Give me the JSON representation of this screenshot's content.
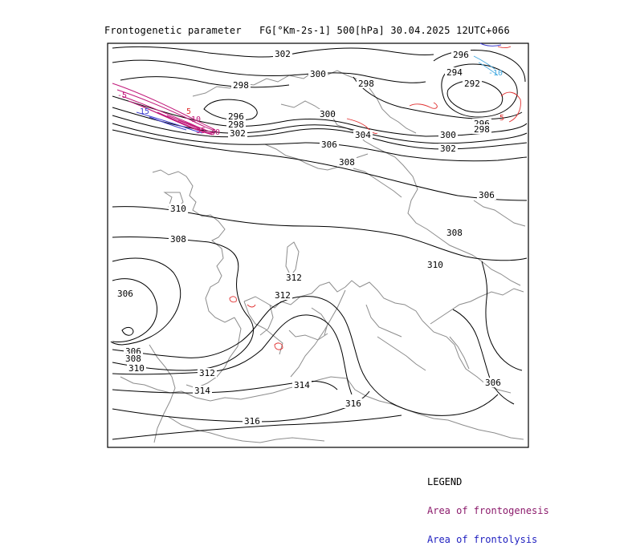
{
  "title": "Frontogenetic parameter   FG[°Km-2s-1] 500[hPa] 30.04.2025 12UTC+066",
  "legend": {
    "header": "LEGEND",
    "genesis": "Area of frontogenesis",
    "lysis": "Area of frontolysis"
  },
  "colors": {
    "contour": "#000000",
    "coastline": "#8c8c8c",
    "frontogenesis": "#c0187a",
    "frontolysis": "#4040d0",
    "red_contour": "#e03030",
    "cyan_contour": "#40a8e0"
  },
  "contour_labels": [
    "302",
    "300",
    "298",
    "296",
    "298",
    "302",
    "296",
    "294",
    "292",
    "300",
    "298",
    "304",
    "300",
    "302",
    "306",
    "308",
    "306",
    "310",
    "308",
    "312",
    "312",
    "306",
    "306",
    "308",
    "310",
    "312",
    "314",
    "314",
    "316",
    "316",
    "308",
    "310",
    "306",
    "296",
    "298"
  ],
  "small_labels": [
    "-5",
    "10",
    "15",
    "35",
    "40",
    "5",
    "-10",
    "5"
  ]
}
